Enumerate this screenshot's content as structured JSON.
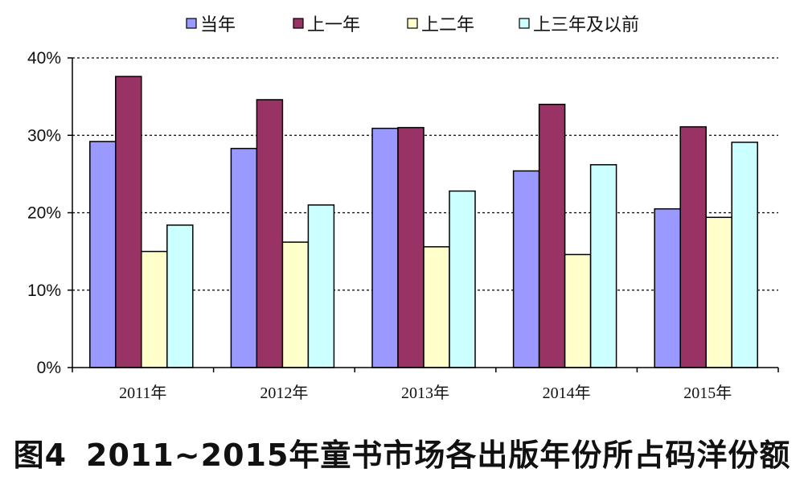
{
  "figure": {
    "caption_number": "图4",
    "caption_text": "2011~2015年童书市场各出版年份所占码洋份额"
  },
  "chart_data": {
    "type": "bar",
    "categories": [
      "2011年",
      "2012年",
      "2013年",
      "2014年",
      "2015年"
    ],
    "series": [
      {
        "name": "当年",
        "color": "#9999ff",
        "values": [
          29.2,
          28.3,
          30.9,
          25.4,
          20.5
        ]
      },
      {
        "name": "上一年",
        "color": "#993366",
        "values": [
          37.6,
          34.6,
          31.0,
          34.0,
          31.1
        ]
      },
      {
        "name": "上二年",
        "color": "#ffffcc",
        "values": [
          15.0,
          16.2,
          15.6,
          14.6,
          19.4
        ]
      },
      {
        "name": "上三年及以前",
        "color": "#ccffff",
        "values": [
          18.4,
          21.0,
          22.8,
          26.2,
          29.1
        ]
      }
    ],
    "ylim": [
      0,
      40
    ],
    "yticks": [
      0,
      10,
      20,
      30,
      40
    ],
    "ytick_labels": [
      "0%",
      "10%",
      "20%",
      "30%",
      "40%"
    ],
    "grid": "horizontal dashed",
    "legend_position": "top"
  }
}
